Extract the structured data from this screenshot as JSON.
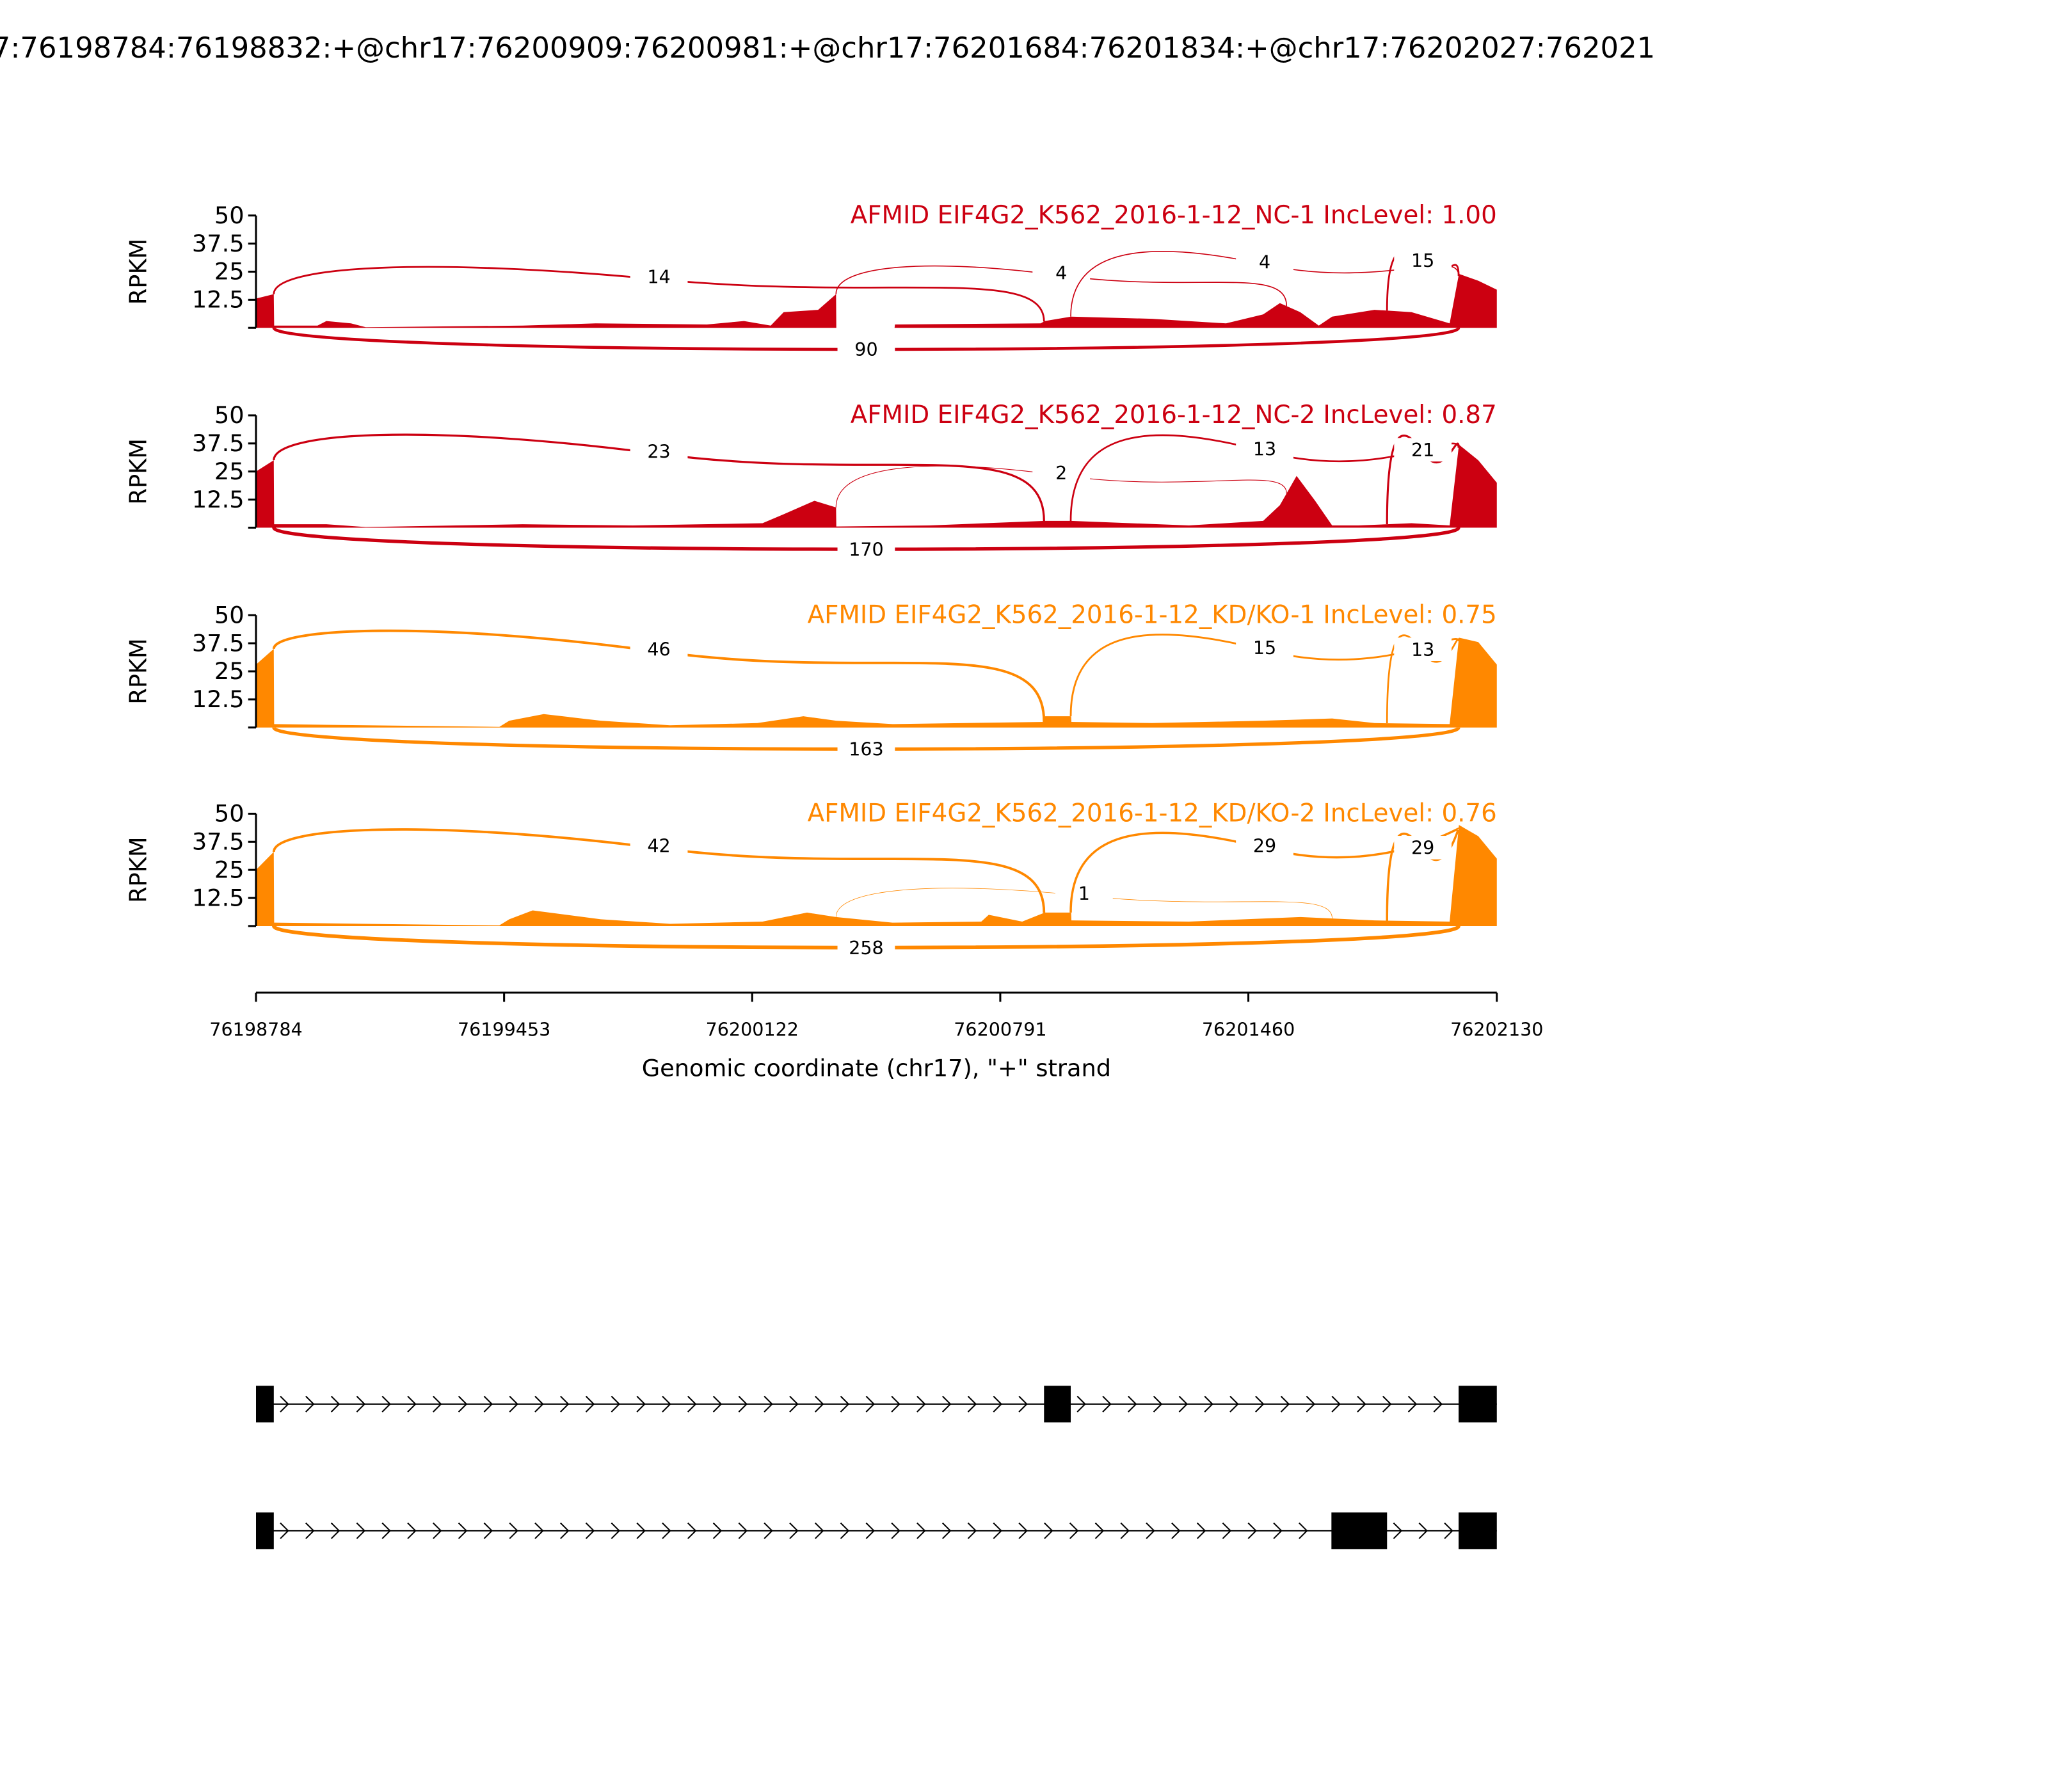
{
  "title": "7:76198784:76198832:+@chr17:76200909:76200981:+@chr17:76201684:76201834:+@chr17:76202027:762021",
  "colors": {
    "nc": "#cc0011",
    "kd": "#ff8800"
  },
  "chart_data": {
    "type": "area",
    "xlabel": "Genomic coordinate (chr17), \"+\" strand",
    "ylabel": "RPKM",
    "xlim": [
      76198784,
      76202130
    ],
    "ylim": [
      0,
      50
    ],
    "x_ticks": [
      "76198784",
      "76199453",
      "76200122",
      "76200791",
      "76201460",
      "76202130"
    ],
    "y_ticks": [
      "50",
      "37.5",
      "25",
      "12.5"
    ],
    "panels": [
      {
        "title": "AFMID EIF4G2_K562_2016-1-12_NC-1 IncLevel: 1.00",
        "color": "#cc0011",
        "coverage": [
          [
            76198784,
            13
          ],
          [
            76198832,
            15
          ],
          [
            76198833,
            1
          ],
          [
            76198950,
            1
          ],
          [
            76198974,
            3
          ],
          [
            76199040,
            2
          ],
          [
            76199080,
            0.3
          ],
          [
            76199503,
            1
          ],
          [
            76199700,
            2
          ],
          [
            76200000,
            1.5
          ],
          [
            76200100,
            3
          ],
          [
            76200172,
            1
          ],
          [
            76200207,
            7
          ],
          [
            76200300,
            8
          ],
          [
            76200348,
            15
          ],
          [
            76200349,
            0
          ],
          [
            76200506,
            0
          ],
          [
            76200507,
            1.5
          ],
          [
            76200900,
            2
          ],
          [
            76200911,
            3
          ],
          [
            76200982,
            5
          ],
          [
            76201200,
            4
          ],
          [
            76201400,
            2
          ],
          [
            76201500,
            6
          ],
          [
            76201545,
            11
          ],
          [
            76201600,
            7
          ],
          [
            76201650,
            1
          ],
          [
            76201686,
            5
          ],
          [
            76201800,
            8
          ],
          [
            76201900,
            7
          ],
          [
            76202003,
            2
          ],
          [
            76202028,
            24
          ],
          [
            76202080,
            21
          ],
          [
            76202130,
            17
          ]
        ],
        "junctions": [
          {
            "from": 76198832,
            "to": 76200909,
            "count": "14",
            "side": "above"
          },
          {
            "from": 76200348,
            "to": 76201563,
            "count": "4",
            "side": "above"
          },
          {
            "from": 76200981,
            "to": 76202027,
            "count": "4",
            "side": "above"
          },
          {
            "from": 76201834,
            "to": 76202027,
            "count": "15",
            "side": "above"
          },
          {
            "from": 76198832,
            "to": 76202027,
            "count": "90",
            "side": "below"
          }
        ]
      },
      {
        "title": "AFMID EIF4G2_K562_2016-1-12_NC-2 IncLevel: 0.87",
        "color": "#cc0011",
        "coverage": [
          [
            76198784,
            25
          ],
          [
            76198832,
            30
          ],
          [
            76198833,
            1.5
          ],
          [
            76198974,
            1.5
          ],
          [
            76199080,
            0.3
          ],
          [
            76199503,
            1.5
          ],
          [
            76199800,
            1
          ],
          [
            76200150,
            2
          ],
          [
            76200207,
            6
          ],
          [
            76200290,
            12
          ],
          [
            76200348,
            9
          ],
          [
            76200349,
            0.5
          ],
          [
            76200600,
            1
          ],
          [
            76200911,
            3
          ],
          [
            76200982,
            3
          ],
          [
            76201300,
            1
          ],
          [
            76201500,
            3
          ],
          [
            76201545,
            10
          ],
          [
            76201590,
            23
          ],
          [
            76201640,
            12
          ],
          [
            76201686,
            1
          ],
          [
            76201757,
            1
          ],
          [
            76201900,
            2
          ],
          [
            76202003,
            1
          ],
          [
            76202028,
            37
          ],
          [
            76202080,
            30
          ],
          [
            76202130,
            20
          ]
        ],
        "junctions": [
          {
            "from": 76198832,
            "to": 76200909,
            "count": "23",
            "side": "above"
          },
          {
            "from": 76200348,
            "to": 76201563,
            "count": "2",
            "side": "above"
          },
          {
            "from": 76200981,
            "to": 76202027,
            "count": "13",
            "side": "above"
          },
          {
            "from": 76201834,
            "to": 76202027,
            "count": "21",
            "side": "above"
          },
          {
            "from": 76198832,
            "to": 76202027,
            "count": "170",
            "side": "below"
          }
        ]
      },
      {
        "title": "AFMID EIF4G2_K562_2016-1-12_KD/KO-1 IncLevel: 0.75",
        "color": "#ff8800",
        "coverage": [
          [
            76198784,
            28
          ],
          [
            76198832,
            35
          ],
          [
            76198833,
            1.5
          ],
          [
            76199080,
            1
          ],
          [
            76199440,
            0.3
          ],
          [
            76199467,
            3
          ],
          [
            76199560,
            6
          ],
          [
            76199714,
            3
          ],
          [
            76199900,
            1
          ],
          [
            76200136,
            2
          ],
          [
            76200260,
            5
          ],
          [
            76200348,
            3
          ],
          [
            76200500,
            1.5
          ],
          [
            76200911,
            2.5
          ],
          [
            76200912,
            5
          ],
          [
            76200982,
            5
          ],
          [
            76200983,
            2.5
          ],
          [
            76201200,
            2
          ],
          [
            76201500,
            3
          ],
          [
            76201686,
            4
          ],
          [
            76201800,
            2
          ],
          [
            76202003,
            1.5
          ],
          [
            76202028,
            40
          ],
          [
            76202080,
            38
          ],
          [
            76202130,
            28
          ]
        ],
        "junctions": [
          {
            "from": 76198832,
            "to": 76200909,
            "count": "46",
            "side": "above"
          },
          {
            "from": 76200981,
            "to": 76202027,
            "count": "15",
            "side": "above"
          },
          {
            "from": 76201834,
            "to": 76202027,
            "count": "13",
            "side": "above"
          },
          {
            "from": 76198832,
            "to": 76202027,
            "count": "163",
            "side": "below"
          }
        ]
      },
      {
        "title": "AFMID EIF4G2_K562_2016-1-12_KD/KO-2 IncLevel: 0.76",
        "color": "#ff8800",
        "coverage": [
          [
            76198784,
            25
          ],
          [
            76198832,
            33
          ],
          [
            76198833,
            1.5
          ],
          [
            76199080,
            1
          ],
          [
            76199440,
            0.3
          ],
          [
            76199467,
            3
          ],
          [
            76199530,
            7
          ],
          [
            76199714,
            3
          ],
          [
            76199900,
            1
          ],
          [
            76200150,
            2
          ],
          [
            76200270,
            6
          ],
          [
            76200348,
            4
          ],
          [
            76200500,
            1.5
          ],
          [
            76200740,
            2
          ],
          [
            76200760,
            5
          ],
          [
            76200850,
            2
          ],
          [
            76200911,
            6
          ],
          [
            76200982,
            6
          ],
          [
            76200983,
            2.5
          ],
          [
            76201300,
            2
          ],
          [
            76201600,
            4
          ],
          [
            76201800,
            2.5
          ],
          [
            76202003,
            2
          ],
          [
            76202028,
            45
          ],
          [
            76202080,
            40
          ],
          [
            76202130,
            30
          ]
        ],
        "junctions": [
          {
            "from": 76198832,
            "to": 76200909,
            "count": "42",
            "side": "above"
          },
          {
            "from": 76200348,
            "to": 76201686,
            "count": "1",
            "side": "above"
          },
          {
            "from": 76200981,
            "to": 76202027,
            "count": "29",
            "side": "above"
          },
          {
            "from": 76201834,
            "to": 76202027,
            "count": "29",
            "side": "above"
          },
          {
            "from": 76198832,
            "to": 76202027,
            "count": "258",
            "side": "below"
          }
        ]
      }
    ],
    "transcripts": [
      {
        "exons": [
          [
            76198784,
            76198832
          ],
          [
            76200909,
            76200981
          ],
          [
            76202027,
            76202130
          ]
        ]
      },
      {
        "exons": [
          [
            76198784,
            76198832
          ],
          [
            76201684,
            76201834
          ],
          [
            76202027,
            76202130
          ]
        ]
      }
    ]
  }
}
